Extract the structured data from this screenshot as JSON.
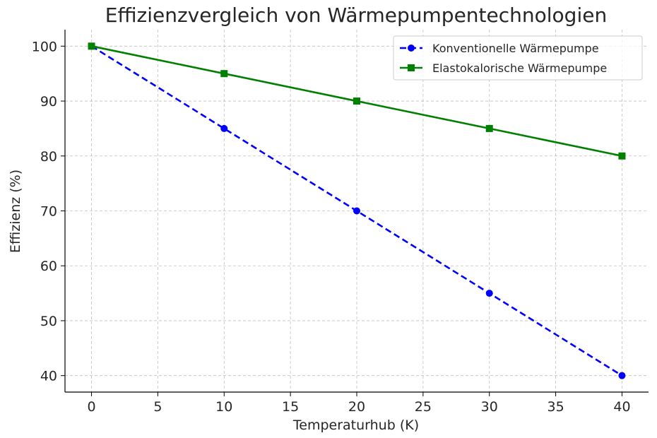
{
  "chart_data": {
    "type": "line",
    "title": "Effizienzvergleich von Wärmepumpentechnologien",
    "xlabel": "Temperaturhub (K)",
    "ylabel": "Effizienz (%)",
    "xlim": [
      -2,
      42
    ],
    "ylim": [
      37,
      103
    ],
    "xticks": [
      0,
      5,
      10,
      15,
      20,
      25,
      30,
      35,
      40
    ],
    "yticks": [
      40,
      50,
      60,
      70,
      80,
      90,
      100
    ],
    "grid": true,
    "legend_position": "top-right",
    "series": [
      {
        "name": "Konventionelle Wärmepumpe",
        "x": [
          0,
          10,
          20,
          30,
          40
        ],
        "y": [
          100,
          85,
          70,
          55,
          40
        ],
        "color": "#0000ff",
        "line_style": "dashed",
        "marker": "circle"
      },
      {
        "name": "Elastokalorische Wärmepumpe",
        "x": [
          0,
          10,
          20,
          30,
          40
        ],
        "y": [
          100,
          95,
          90,
          85,
          80
        ],
        "color": "#008000",
        "line_style": "solid",
        "marker": "square"
      }
    ]
  }
}
